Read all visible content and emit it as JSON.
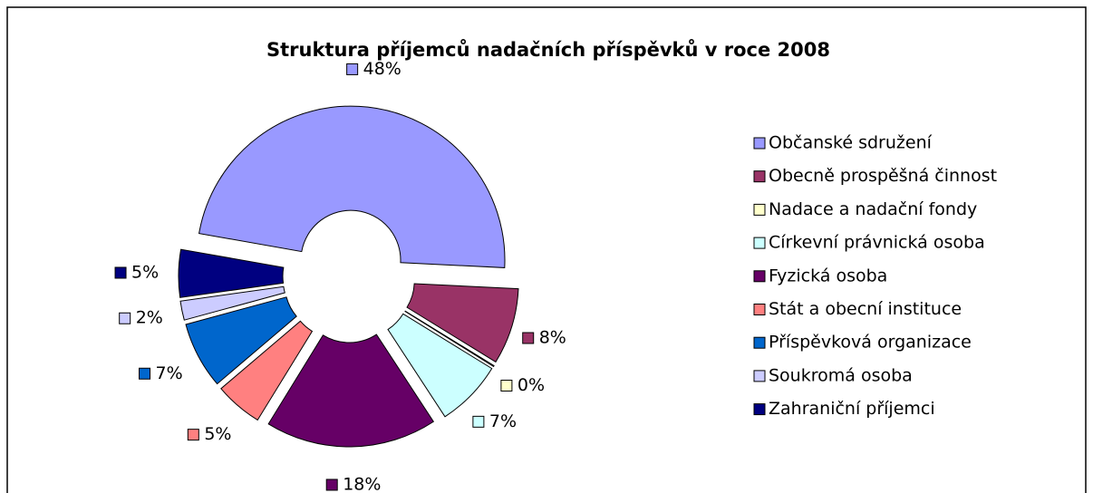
{
  "chart_data": {
    "type": "doughnut",
    "title": "Struktura příjemců nadačních příspěvků v roce 2008",
    "categories": [
      "Občanské sdružení",
      "Obecně prospěšná činnost",
      "Nadace a nadační fondy",
      "Církevní právnická osoba",
      "Fyzická osoba",
      "Stát a obecní instituce",
      "Příspěvková organizace",
      "Soukromá osoba",
      "Zahraniční příjemci"
    ],
    "values": [
      48,
      8,
      0,
      7,
      18,
      5,
      7,
      2,
      5
    ],
    "value_labels": [
      "48%",
      "8%",
      "0%",
      "7%",
      "18%",
      "5%",
      "7%",
      "2%",
      "5%"
    ],
    "colors": [
      "#9999ff",
      "#993366",
      "#ffffcc",
      "#ccffff",
      "#660066",
      "#ff8080",
      "#0066cc",
      "#ccccff",
      "#000080"
    ],
    "legend": "right"
  }
}
